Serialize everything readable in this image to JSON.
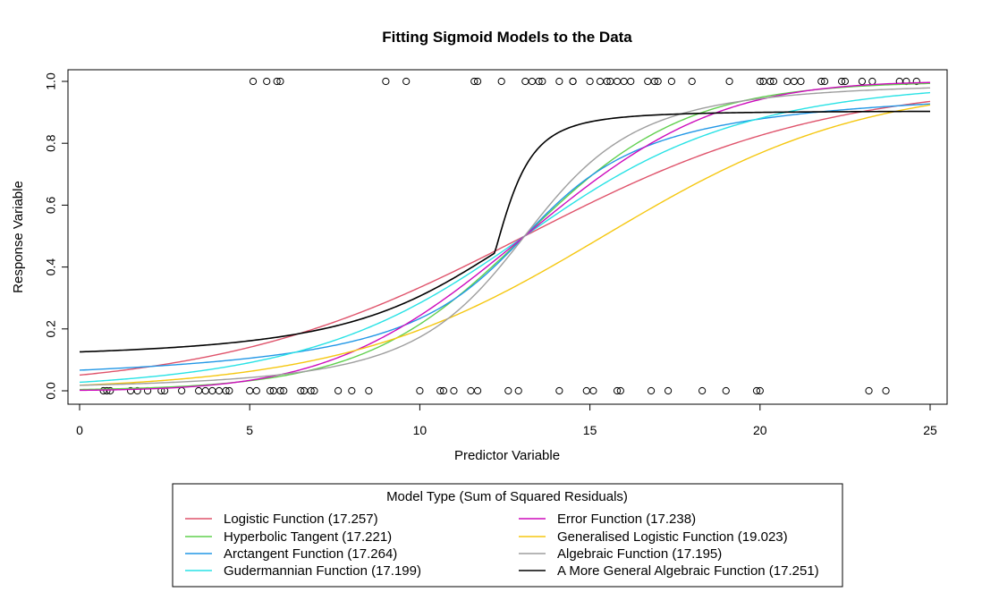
{
  "chart_data": {
    "type": "scatter",
    "title": "Fitting Sigmoid Models to the Data",
    "xlabel": "Predictor Variable",
    "ylabel": "Response Variable",
    "xlim": [
      0,
      25
    ],
    "ylim": [
      0,
      1
    ],
    "x_ticks": [
      "0",
      "5",
      "10",
      "15",
      "20",
      "25"
    ],
    "y_ticks": [
      "0.0",
      "0.2",
      "0.4",
      "0.6",
      "0.8",
      "1.0"
    ],
    "grid": false,
    "legend": {
      "placement": "bottom-center",
      "title": "Model Type (Sum of Squared Residuals)"
    },
    "points": {
      "y1": [
        5.1,
        5.5,
        5.8,
        5.9,
        9.0,
        9.6,
        11.6,
        11.7,
        12.4,
        13.1,
        13.3,
        13.5,
        13.6,
        14.1,
        14.5,
        14.5,
        15.0,
        15.3,
        15.5,
        15.6,
        15.8,
        16.0,
        16.2,
        16.7,
        16.9,
        17.0,
        17.4,
        18.0,
        19.1,
        20.0,
        20.1,
        20.3,
        20.4,
        20.8,
        21.0,
        21.2,
        21.8,
        21.9,
        22.4,
        22.5,
        23.0,
        23.3,
        24.1,
        24.3,
        24.6
      ],
      "y0": [
        0.7,
        0.8,
        0.9,
        1.5,
        1.7,
        2.0,
        2.4,
        2.5,
        3.0,
        3.5,
        3.7,
        3.9,
        4.1,
        4.3,
        4.4,
        5.0,
        5.2,
        5.6,
        5.7,
        5.9,
        6.0,
        6.5,
        6.6,
        6.8,
        6.9,
        7.6,
        8.0,
        8.5,
        10.0,
        10.6,
        10.7,
        11.0,
        11.5,
        11.7,
        12.6,
        12.9,
        14.1,
        14.9,
        15.1,
        15.8,
        15.9,
        16.8,
        17.3,
        18.3,
        19.0,
        19.9,
        20.0,
        23.2,
        23.7
      ]
    },
    "series": [
      {
        "name": "Logistic Function (17.257)",
        "color": "#DF536B",
        "model": "logistic",
        "params": {
          "k": 0.224,
          "x0": 13.08
        }
      },
      {
        "name": "Hyperbolic Tangent (17.221)",
        "color": "#61D04F",
        "model": "tanh",
        "params": {
          "k": 0.21,
          "x0": 13.08
        }
      },
      {
        "name": "Arctangent Function (17.264)",
        "color": "#2297E6",
        "model": "atan",
        "params": {
          "k": 0.36,
          "x0": 13.08
        }
      },
      {
        "name": "Gudermannian Function (17.199)",
        "color": "#28E2E5",
        "model": "gd",
        "params": {
          "k": 0.24,
          "x0": 13.08
        }
      },
      {
        "name": "Error Function (17.238)",
        "color": "#CD0BBC",
        "model": "erf",
        "params": {
          "k": 0.16,
          "x0": 13.08
        }
      },
      {
        "name": "Generalised Logistic Function (19.023)",
        "color": "#F5C710",
        "model": "logistic",
        "params": {
          "k": 0.26,
          "x0": 15.4
        }
      },
      {
        "name": "Algebraic Function (17.195)",
        "color": "#9E9E9E",
        "model": "alg",
        "params": {
          "k": 0.28,
          "x0": 13.08
        }
      },
      {
        "name": "A More General Algebraic Function (17.251)",
        "color": "#000000",
        "model": "general_alg",
        "params": {
          "x0": 12.2
        }
      }
    ]
  }
}
